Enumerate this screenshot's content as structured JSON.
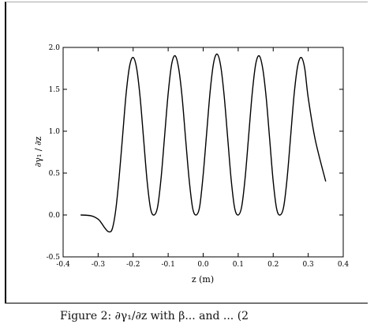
{
  "caption": "Figure 2: ∂γ₁/∂z with β... and ... (2",
  "chart_data": {
    "type": "line",
    "title": "",
    "xlabel": "z (m)",
    "ylabel": "∂γ₁ / ∂z",
    "xlim": [
      -0.4,
      0.4
    ],
    "ylim": [
      -0.5,
      2.0
    ],
    "xticks": [
      "-0.4",
      "-0.3",
      "-0.2",
      "-0.1",
      "0.0",
      "0.1",
      "0.2",
      "0.3",
      "0.4"
    ],
    "yticks": [
      "-0.5",
      "0.0",
      "0.5",
      "1.0",
      "1.5",
      "2.0"
    ],
    "grid": false,
    "series": [
      {
        "color": "#000000",
        "x": [
          -0.35,
          -0.32,
          -0.3,
          -0.29,
          -0.28,
          -0.27,
          -0.26,
          -0.25,
          -0.24,
          -0.23,
          -0.22,
          -0.21,
          -0.2,
          -0.19,
          -0.18,
          -0.17,
          -0.16,
          -0.15,
          -0.14,
          -0.13,
          -0.12,
          -0.11,
          -0.1,
          -0.09,
          -0.08,
          -0.07,
          -0.06,
          -0.05,
          -0.04,
          -0.03,
          -0.02,
          -0.01,
          0.0,
          0.01,
          0.02,
          0.03,
          0.04,
          0.05,
          0.06,
          0.07,
          0.08,
          0.09,
          0.1,
          0.11,
          0.12,
          0.13,
          0.14,
          0.15,
          0.16,
          0.17,
          0.18,
          0.19,
          0.2,
          0.21,
          0.22,
          0.23,
          0.24,
          0.25,
          0.26,
          0.27,
          0.28,
          0.29,
          0.3,
          0.32,
          0.35
        ],
        "y": [
          0.0,
          -0.01,
          -0.05,
          -0.1,
          -0.16,
          -0.2,
          -0.17,
          0.05,
          0.45,
          0.95,
          1.45,
          1.78,
          1.88,
          1.75,
          1.4,
          0.9,
          0.4,
          0.07,
          0.0,
          0.1,
          0.45,
          0.95,
          1.45,
          1.8,
          1.9,
          1.75,
          1.4,
          0.9,
          0.42,
          0.08,
          0.0,
          0.1,
          0.48,
          0.98,
          1.48,
          1.82,
          1.92,
          1.78,
          1.42,
          0.92,
          0.42,
          0.08,
          0.0,
          0.1,
          0.45,
          0.95,
          1.45,
          1.8,
          1.9,
          1.75,
          1.4,
          0.9,
          0.4,
          0.07,
          0.0,
          0.1,
          0.45,
          0.95,
          1.45,
          1.78,
          1.88,
          1.75,
          1.4,
          0.9,
          0.4
        ]
      }
    ]
  }
}
